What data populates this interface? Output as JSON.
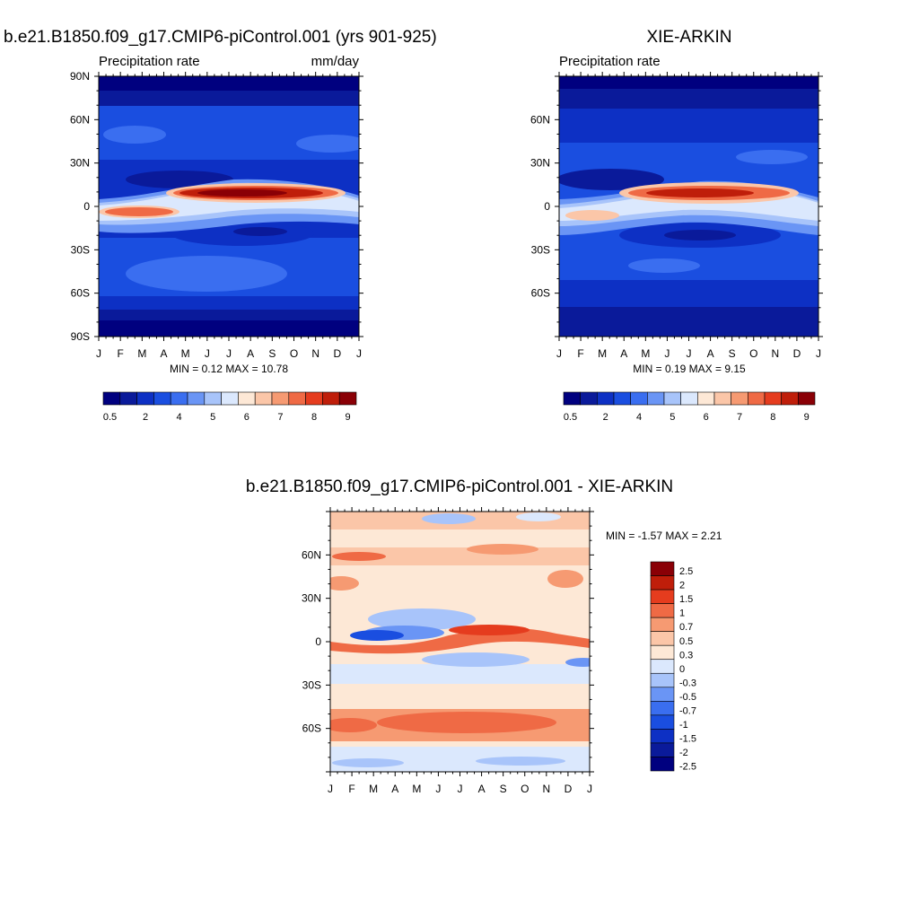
{
  "colors": {
    "precip_scale": [
      "#00007f",
      "#0a1a9a",
      "#0d30c4",
      "#1a4ee0",
      "#3a6ef0",
      "#6a95f5",
      "#a8c4fa",
      "#dbe8fd",
      "#fde8d6",
      "#fbc6a8",
      "#f69a72",
      "#ef6a45",
      "#e53c1e",
      "#bf1e0a",
      "#8a0006"
    ],
    "diff_scale": [
      "#00007f",
      "#0a1a9a",
      "#0d30c4",
      "#1a4ee0",
      "#3a6ef0",
      "#6a95f5",
      "#a8c4fa",
      "#dbe8fd",
      "#fde8d6",
      "#fbc6a8",
      "#f69a72",
      "#ef6a45",
      "#e53c1e",
      "#bf1e0a",
      "#8a0006"
    ]
  },
  "chart_data": [
    {
      "type": "heatmap",
      "title": "b.e21.B1850.f09_g17.CMIP6-piControl.001 (yrs 901-925)",
      "left_label": "Precipitation rate",
      "right_label": "mm/day",
      "x_ticks": [
        "J",
        "F",
        "M",
        "A",
        "M",
        "J",
        "J",
        "A",
        "S",
        "O",
        "N",
        "D",
        "J"
      ],
      "y_ticks": [
        "90N",
        "60N",
        "30N",
        "0",
        "30S",
        "60S",
        "90S"
      ],
      "stats": "MIN =   0.12 MAX =  10.78",
      "colorbar_labels": [
        "0.5",
        "2",
        "4",
        "5",
        "6",
        "7",
        "8",
        "9"
      ],
      "min": 0.12,
      "max": 10.78
    },
    {
      "type": "heatmap",
      "title": "XIE-ARKIN",
      "left_label": "Precipitation rate",
      "right_label": "",
      "x_ticks": [
        "J",
        "F",
        "M",
        "A",
        "M",
        "J",
        "J",
        "A",
        "S",
        "O",
        "N",
        "D",
        "J"
      ],
      "y_ticks": [
        "60N",
        "30N",
        "0",
        "30S",
        "60S"
      ],
      "stats": "MIN =   0.19 MAX =   9.15",
      "colorbar_labels": [
        "0.5",
        "2",
        "4",
        "5",
        "6",
        "7",
        "8",
        "9"
      ],
      "min": 0.19,
      "max": 9.15
    },
    {
      "type": "heatmap",
      "title": "b.e21.B1850.f09_g17.CMIP6-piControl.001 - XIE-ARKIN",
      "x_ticks": [
        "J",
        "F",
        "M",
        "A",
        "M",
        "J",
        "J",
        "A",
        "S",
        "O",
        "N",
        "D",
        "J"
      ],
      "y_ticks": [
        "60N",
        "30N",
        "0",
        "30S",
        "60S"
      ],
      "stats": "MIN =  -1.57 MAX =   2.21",
      "colorbar_labels": [
        "2.5",
        "2",
        "1.5",
        "1",
        "0.7",
        "0.5",
        "0.3",
        "0",
        "-0.3",
        "-0.5",
        "-0.7",
        "-1",
        "-1.5",
        "-2",
        "-2.5"
      ],
      "min": -1.57,
      "max": 2.21
    }
  ]
}
